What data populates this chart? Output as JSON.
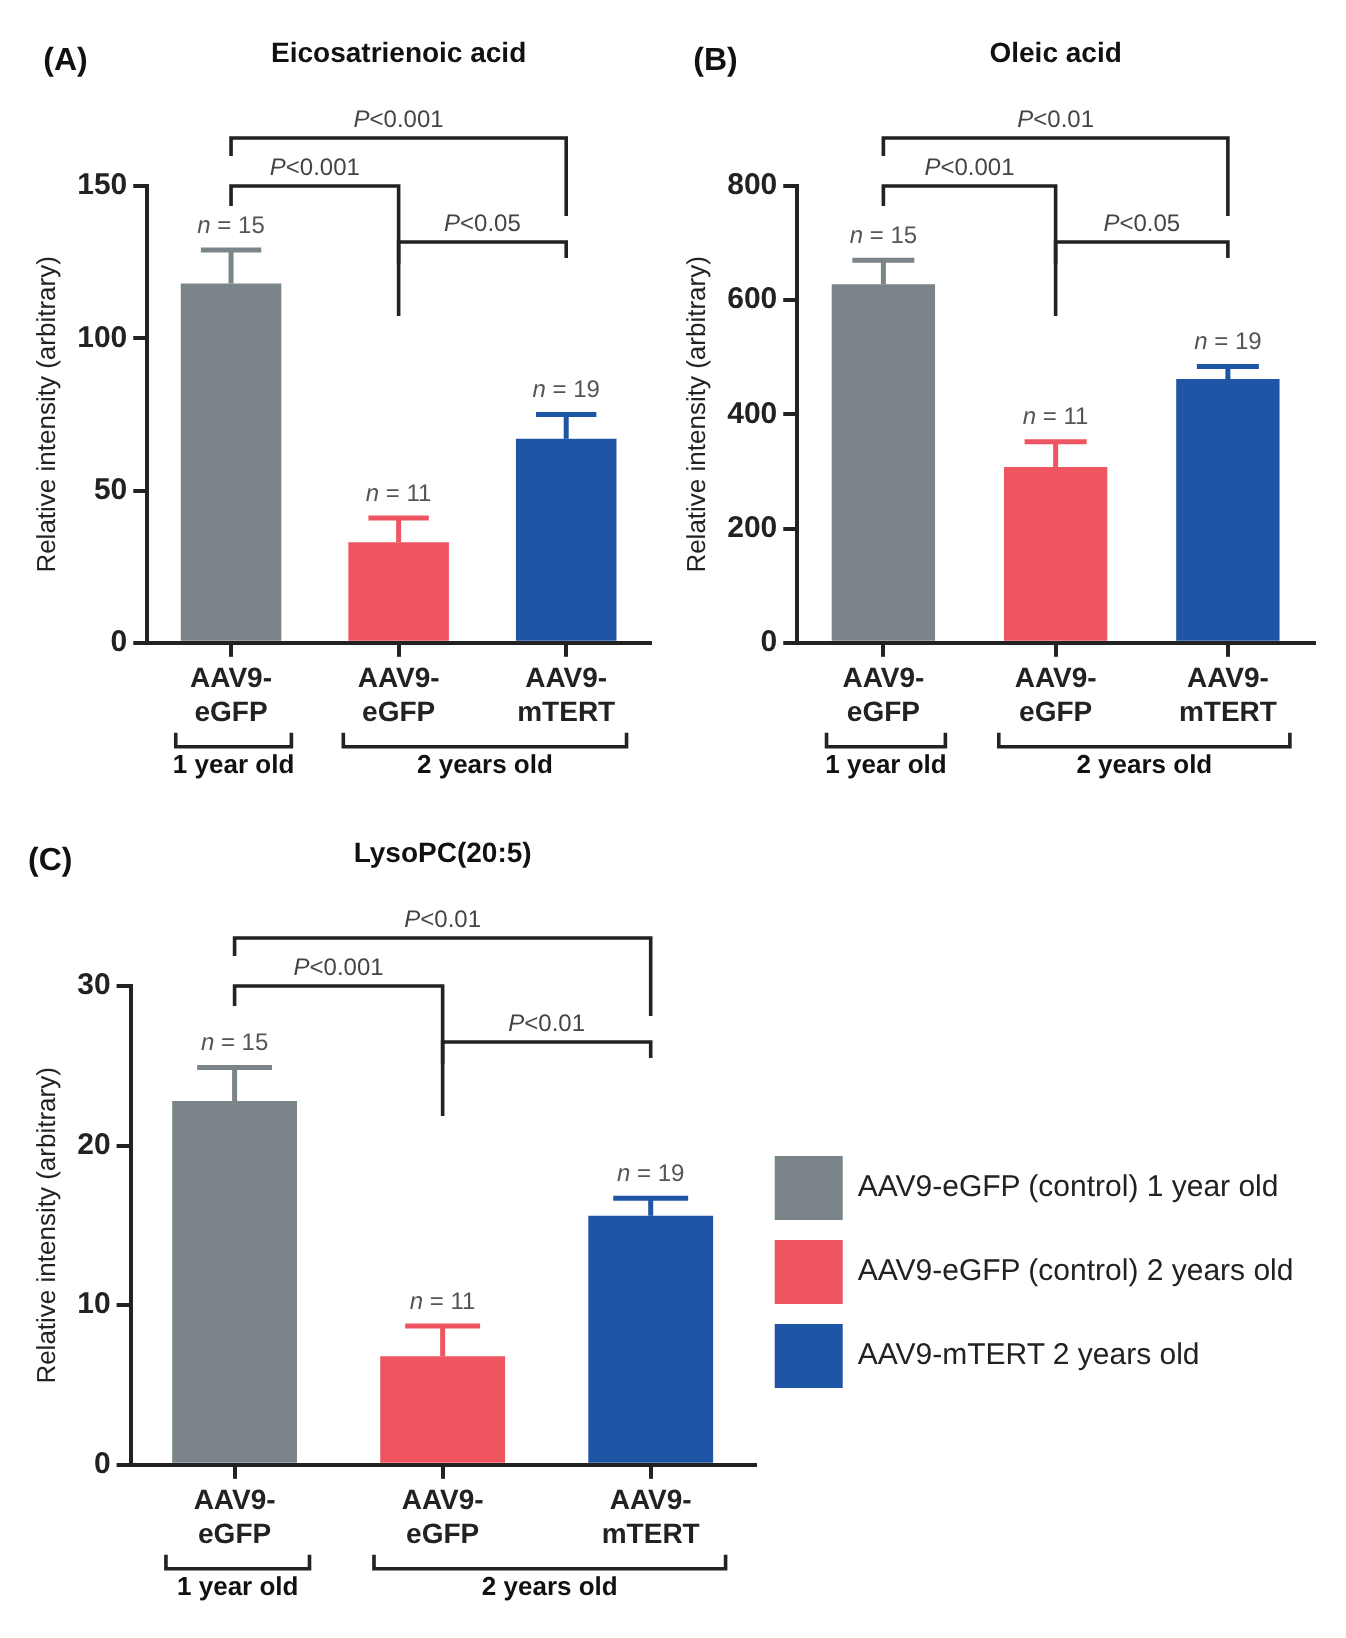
{
  "chart_data": [
    {
      "type": "bar",
      "title": "Eicosatrienoic acid",
      "ylabel": "Relative intensity (arbitrary)",
      "categories": [
        "AAV9-eGFP",
        "AAV9-eGFP",
        "AAV9-mTERT"
      ],
      "series": [
        {
          "color": "#7b8488",
          "values": [
            118,
            null,
            null
          ],
          "errors": [
            [
              118,
              129
            ],
            null,
            null
          ]
        },
        {
          "color": "#ee5560",
          "values": [
            null,
            33,
            null
          ],
          "errors": [
            null,
            [
              33,
              41
            ],
            null
          ]
        },
        {
          "color": "#1f55a5",
          "values": [
            null,
            null,
            67
          ],
          "errors": [
            null,
            null,
            [
              67,
              75
            ]
          ]
        }
      ],
      "ylim": [
        0,
        150
      ],
      "yticks": [
        0,
        50,
        100,
        150
      ],
      "grid": false,
      "legend": false,
      "annotations": [
        "(A)",
        "P<0.001",
        "P<0.001",
        "P<0.05",
        "1 year old",
        "2 years old",
        "n = 15",
        "n = 11",
        "n = 19"
      ]
    },
    {
      "type": "bar",
      "title": "Oleic acid",
      "ylabel": "Relative intensity (arbitrary)",
      "categories": [
        "AAV9-eGFP",
        "AAV9-eGFP",
        "AAV9-mTERT"
      ],
      "series": [
        {
          "color": "#7b8488",
          "values": [
            628,
            null,
            null
          ],
          "errors": [
            [
              628,
              670
            ],
            null,
            null
          ]
        },
        {
          "color": "#ee5560",
          "values": [
            null,
            308,
            null
          ],
          "errors": [
            null,
            [
              308,
              352
            ],
            null
          ]
        },
        {
          "color": "#1f55a5",
          "values": [
            null,
            null,
            462
          ],
          "errors": [
            null,
            null,
            [
              462,
              484
            ]
          ]
        }
      ],
      "ylim": [
        0,
        800
      ],
      "yticks": [
        0,
        200,
        400,
        600,
        800
      ],
      "grid": false,
      "legend": false,
      "annotations": [
        "(B)",
        "P<0.01",
        "P<0.001",
        "P<0.05",
        "1 year old",
        "2 years old",
        "n = 15",
        "n = 11",
        "n = 19"
      ]
    },
    {
      "type": "bar",
      "title": "LysoPC(20:5)",
      "ylabel": "Relative intensity (arbitrary)",
      "categories": [
        "AAV9-eGFP",
        "AAV9-eGFP",
        "AAV9-mTERT"
      ],
      "series": [
        {
          "name": "AAV9-eGFP (control) 1 year old",
          "color": "#7b8488",
          "values": [
            22.8,
            null,
            null
          ],
          "errors": [
            [
              22.8,
              24.9
            ],
            null,
            null
          ]
        },
        {
          "name": "AAV9-eGFP (control) 2 years old",
          "color": "#ee5560",
          "values": [
            null,
            6.8,
            null
          ],
          "errors": [
            null,
            [
              6.8,
              8.7
            ],
            null
          ]
        },
        {
          "name": "AAV9-mTERT 2 years old",
          "color": "#1f55a5",
          "values": [
            null,
            null,
            15.6
          ],
          "errors": [
            null,
            null,
            [
              15.6,
              16.7
            ]
          ]
        }
      ],
      "ylim": [
        0,
        30
      ],
      "yticks": [
        0,
        10,
        20,
        30
      ],
      "grid": false,
      "legend": "right",
      "annotations": [
        "(C)",
        "P<0.01",
        "P<0.001",
        "P<0.01",
        "1 year old",
        "2 years old",
        "n = 15",
        "n = 11",
        "n = 19"
      ]
    }
  ]
}
